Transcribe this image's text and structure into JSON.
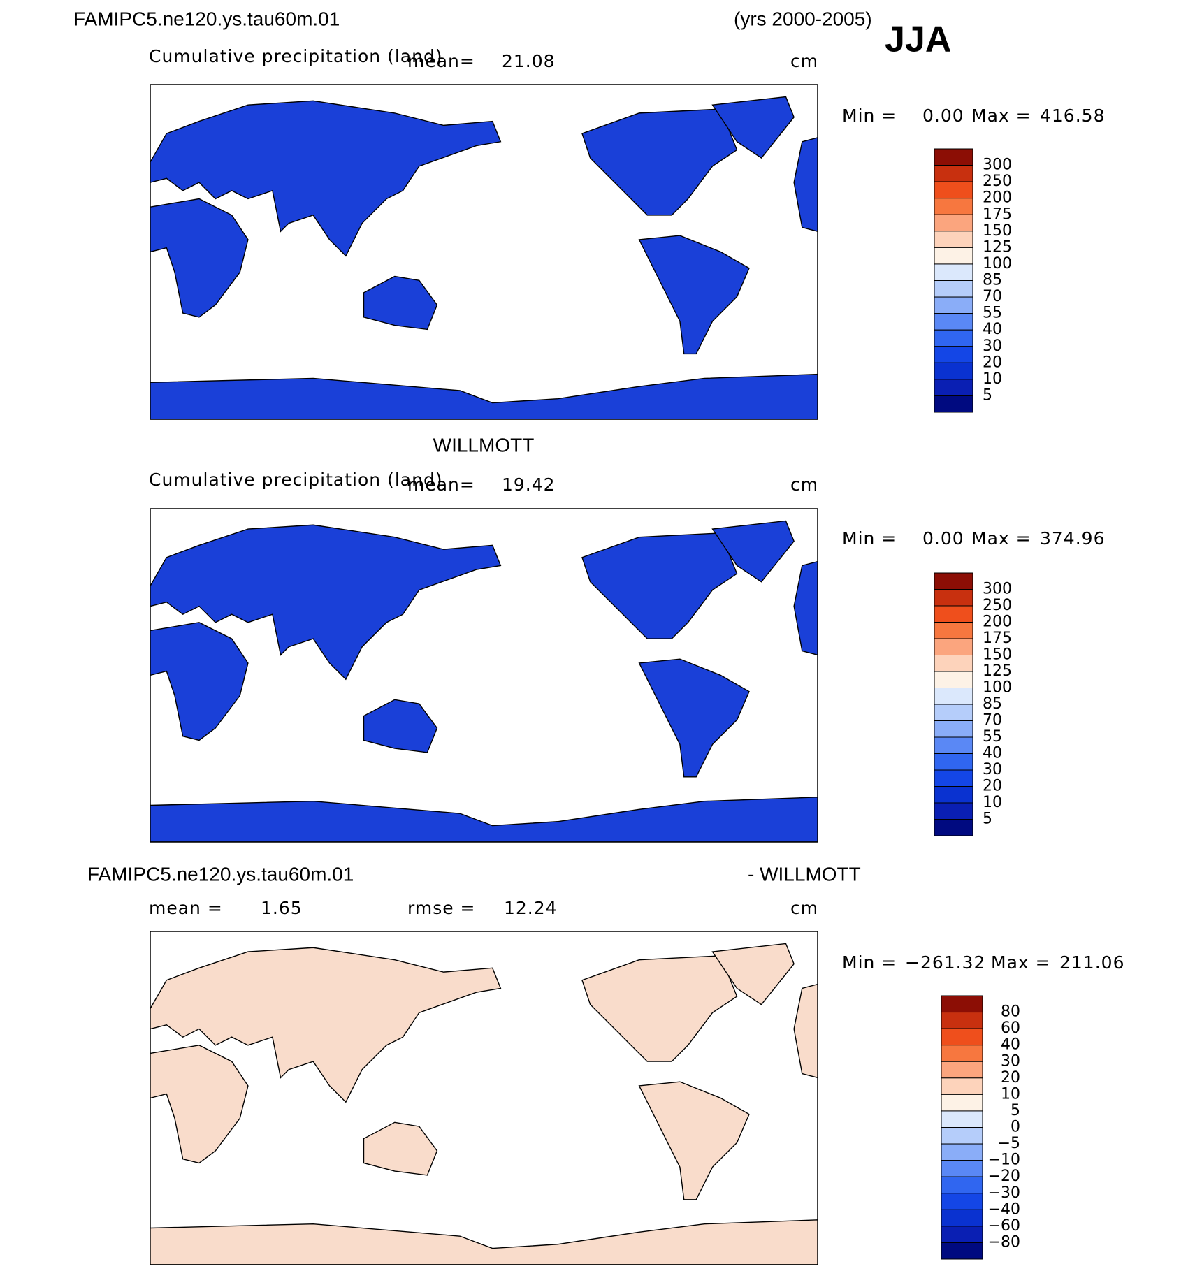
{
  "header": {
    "title": "FAMIPC5.ne120.ys.tau60m.01",
    "years": "(yrs 2000-2005)",
    "season": "JJA"
  },
  "panels": [
    {
      "subtitle": "Cumulative precipitation (land)",
      "mean_label": "mean=",
      "mean": "21.08",
      "units": "cm",
      "min_label": "Min =",
      "min": "0.00",
      "max_label": "Max =",
      "max": "416.58"
    },
    {
      "title": "WILLMOTT",
      "subtitle": "Cumulative precipitation (land)",
      "mean_label": "mean=",
      "mean": "19.42",
      "units": "cm",
      "min_label": "Min =",
      "min": "0.00",
      "max_label": "Max =",
      "max": "374.96"
    },
    {
      "title_left": "FAMIPC5.ne120.ys.tau60m.01",
      "title_right": "- WILLMOTT",
      "mean_label": "mean =",
      "mean": "1.65",
      "rmse_label": "rmse =",
      "rmse": "12.24",
      "units": "cm",
      "min_label": "Min =",
      "min": "−261.32",
      "max_label": "Max =",
      "max": "211.06"
    }
  ],
  "colorbars": [
    {
      "labels": [
        "300",
        "250",
        "200",
        "175",
        "150",
        "125",
        "100",
        "85",
        "70",
        "55",
        "40",
        "30",
        "20",
        "10",
        "5"
      ],
      "colors": [
        "#8c0e05",
        "#c8300f",
        "#ef4f1c",
        "#f7773f",
        "#fba57e",
        "#fdd3bb",
        "#fdf2e6",
        "#dbe8fc",
        "#b5cdfa",
        "#8aadf8",
        "#5a88f5",
        "#3066f0",
        "#1446e6",
        "#0a32d0",
        "#0a1fb3",
        "#000a80"
      ]
    },
    {
      "labels": [
        "300",
        "250",
        "200",
        "175",
        "150",
        "125",
        "100",
        "85",
        "70",
        "55",
        "40",
        "30",
        "20",
        "10",
        "5"
      ],
      "colors": [
        "#8c0e05",
        "#c8300f",
        "#ef4f1c",
        "#f7773f",
        "#fba57e",
        "#fdd3bb",
        "#fdf2e6",
        "#dbe8fc",
        "#b5cdfa",
        "#8aadf8",
        "#5a88f5",
        "#3066f0",
        "#1446e6",
        "#0a32d0",
        "#0a1fb3",
        "#000a80"
      ]
    },
    {
      "labels": [
        "80",
        "60",
        "40",
        "30",
        "20",
        "10",
        "5",
        "0",
        "−5",
        "−10",
        "−20",
        "−30",
        "−40",
        "−60",
        "−80"
      ],
      "colors": [
        "#8c0e05",
        "#c8300f",
        "#ef4f1c",
        "#f7773f",
        "#fba57e",
        "#fdd3bb",
        "#fdf2e6",
        "#dbe8fc",
        "#b5cdfa",
        "#8aadf8",
        "#5a88f5",
        "#3066f0",
        "#1446e6",
        "#0a32d0",
        "#0a1fb3",
        "#000a80"
      ]
    }
  ]
}
